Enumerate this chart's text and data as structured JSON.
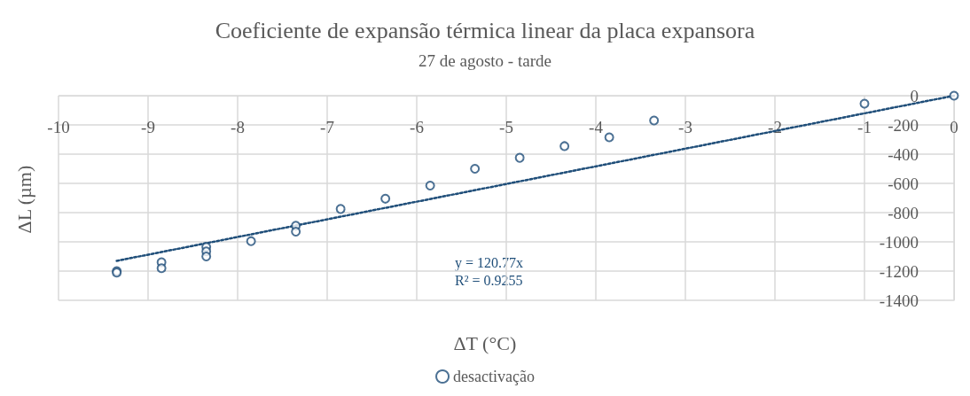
{
  "chart_data": {
    "type": "scatter",
    "title": "Coeficiente de expansão térmica linear da placa expansora",
    "subtitle": "27 de agosto - tarde",
    "xlabel": "ΔT (°C)",
    "ylabel": "ΔL (µm)",
    "series": [
      {
        "name": "desactivação",
        "color": "#1f4e79",
        "x": [
          -9.35,
          -9.35,
          -8.85,
          -8.85,
          -8.35,
          -8.35,
          -8.35,
          -7.85,
          -7.35,
          -7.35,
          -6.85,
          -6.35,
          -5.85,
          -5.35,
          -4.85,
          -4.35,
          -3.85,
          -3.35,
          -1,
          0
        ],
        "values": [
          -1200,
          -1210,
          -1140,
          -1180,
          -1035,
          -1065,
          -1100,
          -995,
          -890,
          -930,
          -775,
          -705,
          -615,
          -500,
          -425,
          -345,
          -285,
          -170,
          -55,
          0
        ]
      },
      {
        "type": "line",
        "color": "#1f4e79",
        "line_style": "dotted",
        "marker": "none",
        "x": [
          -9.35,
          0
        ],
        "values": [
          -1130,
          0
        ]
      }
    ],
    "annotations": [
      "y = 120.77x",
      "R² = 0.9255"
    ],
    "xlim": [
      -10,
      0
    ],
    "xticks": [
      -10,
      -9,
      -8,
      -7,
      -6,
      -5,
      -4,
      -3,
      -2,
      -1,
      0
    ],
    "ylim": [
      -1400,
      0
    ],
    "yticks": [
      -1400,
      -1200,
      -1000,
      -800,
      -600,
      -400,
      -200,
      0
    ],
    "grid": true,
    "legend": "bottom",
    "marker": "circle"
  }
}
